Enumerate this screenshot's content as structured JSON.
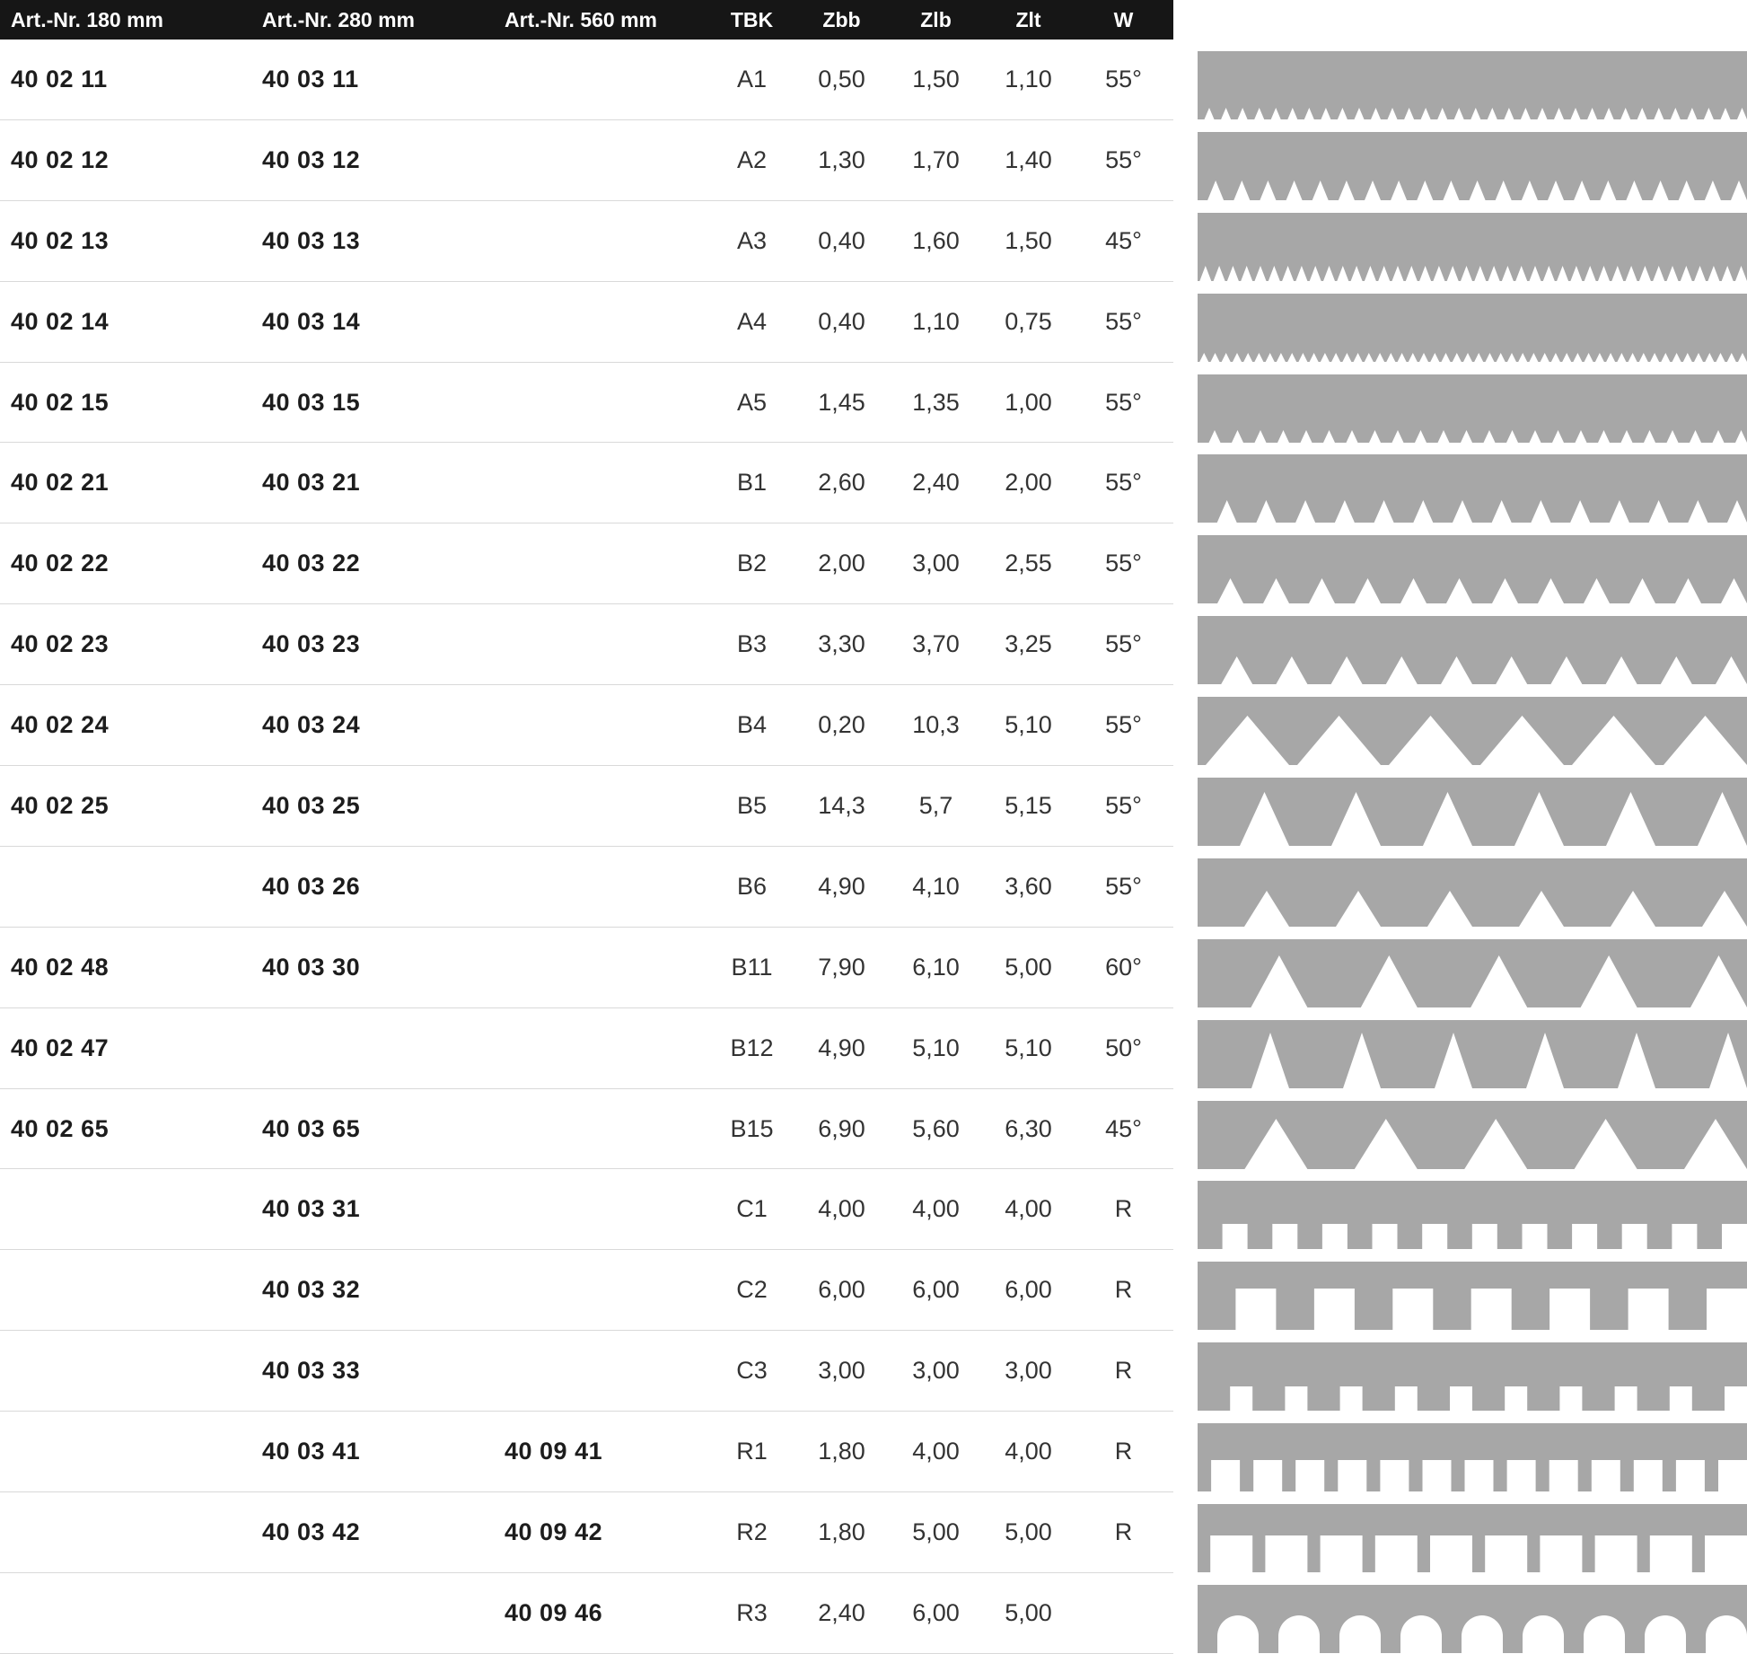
{
  "colors": {
    "header_bg": "#161616",
    "header_text": "#ffffff",
    "profile_gray": "#a7a7a7",
    "row_divider": "#d9d9d9",
    "artnr_text": "#1d1d1d",
    "value_text": "#333333"
  },
  "header": {
    "columns": [
      {
        "key": "art180",
        "label": "Art.-Nr. 180 mm",
        "align": "left"
      },
      {
        "key": "art280",
        "label": "Art.-Nr. 280 mm",
        "align": "left"
      },
      {
        "key": "art560",
        "label": "Art.-Nr. 560 mm",
        "align": "left"
      },
      {
        "key": "tbk",
        "label": "TBK",
        "align": "center"
      },
      {
        "key": "zbb",
        "label": "Zbb",
        "align": "center"
      },
      {
        "key": "zlb",
        "label": "Zlb",
        "align": "center"
      },
      {
        "key": "zlt",
        "label": "Zlt",
        "align": "center"
      },
      {
        "key": "w",
        "label": "W",
        "align": "center"
      }
    ]
  },
  "rows": [
    {
      "art180": "40 02 11",
      "art280": "40 03 11",
      "art560": "",
      "tbk": "A1",
      "zbb": "0,50",
      "zlb": "1,50",
      "zlt": "1,10",
      "w": "55°",
      "profile": {
        "name": "profile-a1",
        "type": "notch",
        "count": 33,
        "gap": 11,
        "depth": 13
      }
    },
    {
      "art180": "40 02 12",
      "art280": "40 03 12",
      "art560": "",
      "tbk": "A2",
      "zbb": "1,30",
      "zlb": "1,70",
      "zlt": "1,40",
      "w": "55°",
      "profile": {
        "name": "profile-a2",
        "type": "notch",
        "count": 21,
        "gap": 18,
        "depth": 22
      }
    },
    {
      "art180": "40 02 13",
      "art280": "40 03 13",
      "art560": "",
      "tbk": "A3",
      "zbb": "0,40",
      "zlb": "1,60",
      "zlt": "1,50",
      "w": "45°",
      "profile": {
        "name": "profile-a3",
        "type": "notch",
        "count": 40,
        "gap": 13,
        "depth": 17
      }
    },
    {
      "art180": "40 02 14",
      "art280": "40 03 14",
      "art560": "",
      "tbk": "A4",
      "zbb": "0,40",
      "zlb": "1,10",
      "zlt": "0,75",
      "w": "55°",
      "profile": {
        "name": "profile-a4",
        "type": "notch",
        "count": 50,
        "gap": 10,
        "depth": 10
      }
    },
    {
      "art180": "40 02 15",
      "art280": "40 03 15",
      "art560": "",
      "tbk": "A5",
      "zbb": "1,45",
      "zlb": "1,35",
      "zlt": "1,00",
      "w": "55°",
      "profile": {
        "name": "profile-a5",
        "type": "notch",
        "count": 24,
        "gap": 13,
        "depth": 14
      }
    },
    {
      "art180": "40 02 21",
      "art280": "40 03 21",
      "art560": "",
      "tbk": "B1",
      "zbb": "2,60",
      "zlb": "2,40",
      "zlt": "2,00",
      "w": "55°",
      "profile": {
        "name": "profile-b1",
        "type": "notch",
        "count": 14,
        "gap": 22,
        "depth": 25
      }
    },
    {
      "art180": "40 02 22",
      "art280": "40 03 22",
      "art560": "",
      "tbk": "B2",
      "zbb": "2,00",
      "zlb": "3,00",
      "zlt": "2,55",
      "w": "55°",
      "profile": {
        "name": "profile-b2",
        "type": "notch",
        "count": 12,
        "gap": 29,
        "depth": 28
      }
    },
    {
      "art180": "40 02 23",
      "art280": "40 03 23",
      "art560": "",
      "tbk": "B3",
      "zbb": "3,30",
      "zlb": "3,70",
      "zlt": "3,25",
      "w": "55°",
      "profile": {
        "name": "profile-b3",
        "type": "notch",
        "count": 10,
        "gap": 35,
        "depth": 31
      }
    },
    {
      "art180": "40 02 24",
      "art280": "40 03 24",
      "art560": "",
      "tbk": "B4",
      "zbb": "0,20",
      "zlb": "10,3",
      "zlt": "5,10",
      "w": "55°",
      "profile": {
        "name": "profile-b4",
        "type": "notch",
        "count": 6,
        "gap": 93,
        "depth": 55
      }
    },
    {
      "art180": "40 02 25",
      "art280": "40 03 25",
      "art560": "",
      "tbk": "B5",
      "zbb": "14,3",
      "zlb": "5,7",
      "zlt": "5,15",
      "w": "55°",
      "profile": {
        "name": "profile-b5",
        "type": "notch",
        "count": 6,
        "gap": 55,
        "depth": 60
      }
    },
    {
      "art180": "",
      "art280": "40 03 26",
      "art560": "",
      "tbk": "B6",
      "zbb": "4,90",
      "zlb": "4,10",
      "zlt": "3,60",
      "w": "55°",
      "profile": {
        "name": "profile-b6",
        "type": "notch",
        "count": 6,
        "gap": 50,
        "depth": 40
      }
    },
    {
      "art180": "40 02 48",
      "art280": "40 03 30",
      "art560": "",
      "tbk": "B11",
      "zbb": "7,90",
      "zlb": "6,10",
      "zlt": "5,00",
      "w": "60°",
      "profile": {
        "name": "profile-b11",
        "type": "notch",
        "count": 5,
        "gap": 63,
        "depth": 58
      }
    },
    {
      "art180": "40 02 47",
      "art280": "",
      "art560": "",
      "tbk": "B12",
      "zbb": "4,90",
      "zlb": "5,10",
      "zlt": "5,10",
      "w": "50°",
      "profile": {
        "name": "profile-b12",
        "type": "notch",
        "count": 6,
        "gap": 42,
        "depth": 62
      }
    },
    {
      "art180": "40 02 65",
      "art280": "40 03 65",
      "art560": "",
      "tbk": "B15",
      "zbb": "6,90",
      "zlb": "5,60",
      "zlt": "6,30",
      "w": "45°",
      "profile": {
        "name": "profile-b15",
        "type": "notch",
        "count": 5,
        "gap": 70,
        "depth": 56
      }
    },
    {
      "art180": "",
      "art280": "40 03 31",
      "art560": "",
      "tbk": "C1",
      "zbb": "4,00",
      "zlb": "4,00",
      "zlt": "4,00",
      "w": "R",
      "profile": {
        "name": "profile-c1",
        "type": "square",
        "count": 11,
        "gap": 28,
        "depth": 28
      }
    },
    {
      "art180": "",
      "art280": "40 03 32",
      "art560": "",
      "tbk": "C2",
      "zbb": "6,00",
      "zlb": "6,00",
      "zlt": "6,00",
      "w": "R",
      "profile": {
        "name": "profile-c2",
        "type": "square",
        "count": 7,
        "gap": 45,
        "depth": 46
      }
    },
    {
      "art180": "",
      "art280": "40 03 33",
      "art560": "",
      "tbk": "C3",
      "zbb": "3,00",
      "zlb": "3,00",
      "zlt": "3,00",
      "w": "R",
      "profile": {
        "name": "profile-c3",
        "type": "square",
        "count": 10,
        "gap": 25,
        "depth": 27
      }
    },
    {
      "art180": "",
      "art280": "40 03 41",
      "art560": "40 09 41",
      "tbk": "R1",
      "zbb": "1,80",
      "zlb": "4,00",
      "zlt": "4,00",
      "w": "R",
      "profile": {
        "name": "profile-r1",
        "type": "square",
        "count": 13,
        "gap": 32,
        "depth": 35
      }
    },
    {
      "art180": "",
      "art280": "40 03 42",
      "art560": "40 09 42",
      "tbk": "R2",
      "zbb": "1,80",
      "zlb": "5,00",
      "zlt": "5,00",
      "w": "R",
      "profile": {
        "name": "profile-r2",
        "type": "square",
        "count": 10,
        "gap": 47,
        "depth": 41
      }
    },
    {
      "art180": "",
      "art280": "",
      "art560": "40 09 46",
      "tbk": "R3",
      "zbb": "2,40",
      "zlb": "6,00",
      "zlt": "5,00",
      "w": "",
      "profile": {
        "name": "profile-r3",
        "type": "arch",
        "count": 9,
        "gap": 46,
        "depth": 42
      }
    }
  ]
}
